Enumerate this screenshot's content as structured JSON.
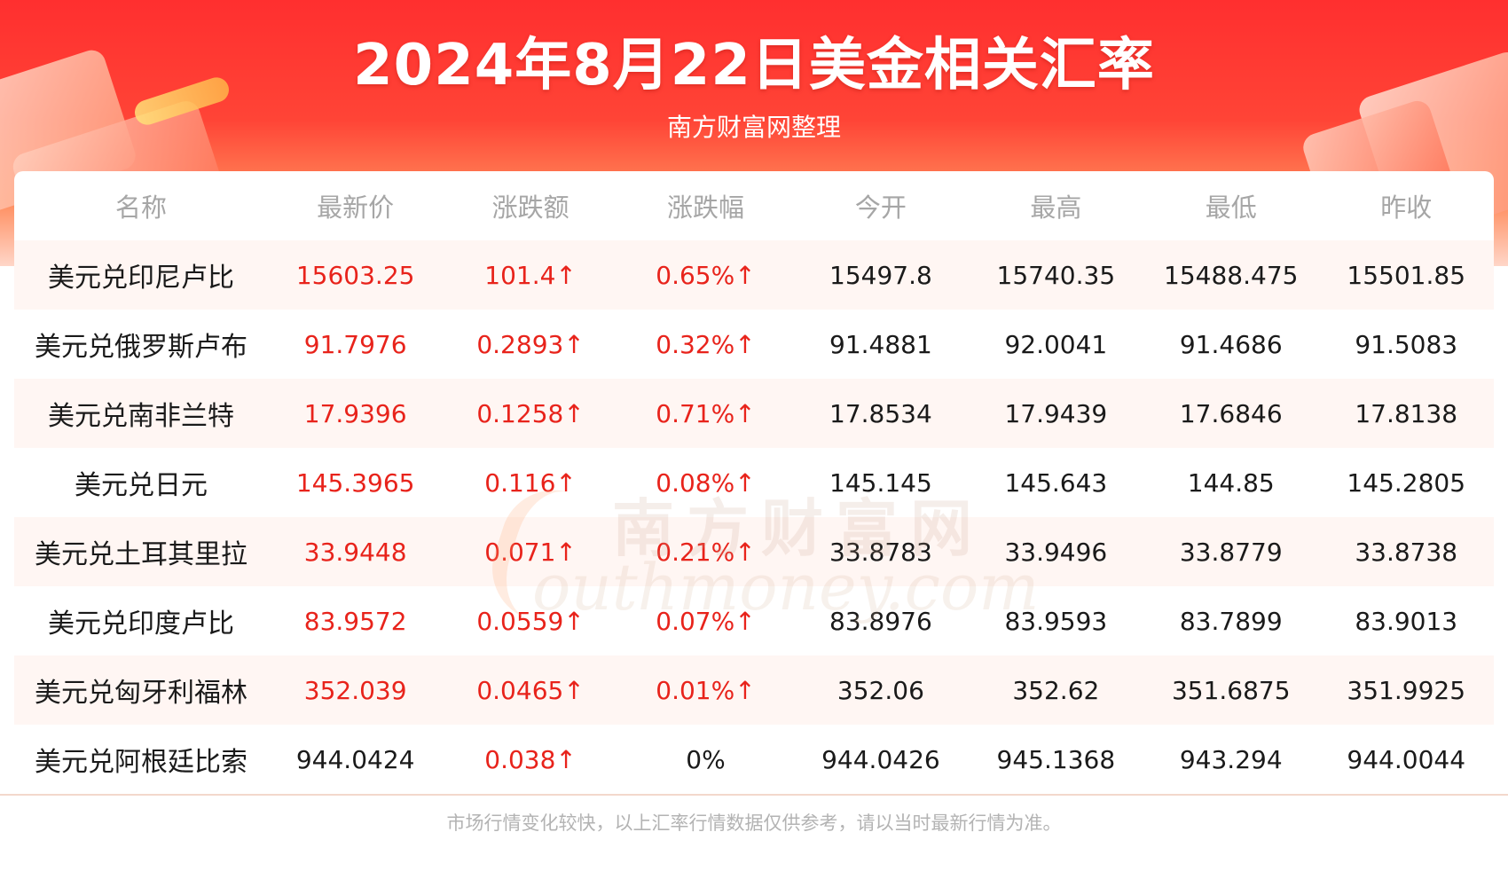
{
  "header": {
    "title": "2024年8月22日美金相关汇率",
    "subtitle": "南方财富网整理"
  },
  "colors": {
    "banner_red": "#ff2f2f",
    "up_red": "#e8231b",
    "row_tint": "#fff6f3",
    "header_gray": "#a6a6a6"
  },
  "table": {
    "columns": [
      "名称",
      "最新价",
      "涨跌额",
      "涨跌幅",
      "今开",
      "最高",
      "最低",
      "昨收"
    ],
    "rows": [
      [
        "美元兑印尼卢比",
        "15603.25",
        "101.4↑",
        "0.65%↑",
        "15497.8",
        "15740.35",
        "15488.475",
        "15501.85"
      ],
      [
        "美元兑俄罗斯卢布",
        "91.7976",
        "0.2893↑",
        "0.32%↑",
        "91.4881",
        "92.0041",
        "91.4686",
        "91.5083"
      ],
      [
        "美元兑南非兰特",
        "17.9396",
        "0.1258↑",
        "0.71%↑",
        "17.8534",
        "17.9439",
        "17.6846",
        "17.8138"
      ],
      [
        "美元兑日元",
        "145.3965",
        "0.116↑",
        "0.08%↑",
        "145.145",
        "145.643",
        "144.85",
        "145.2805"
      ],
      [
        "美元兑土耳其里拉",
        "33.9448",
        "0.071↑",
        "0.21%↑",
        "33.8783",
        "33.9496",
        "33.8779",
        "33.8738"
      ],
      [
        "美元兑印度卢比",
        "83.9572",
        "0.0559↑",
        "0.07%↑",
        "83.8976",
        "83.9593",
        "83.7899",
        "83.9013"
      ],
      [
        "美元兑匈牙利福林",
        "352.039",
        "0.0465↑",
        "0.01%↑",
        "352.06",
        "352.62",
        "351.6875",
        "351.9925"
      ],
      [
        "美元兑阿根廷比索",
        "944.0424",
        "0.038↑",
        "0%",
        "944.0426",
        "945.1368",
        "943.294",
        "944.0044"
      ]
    ]
  },
  "watermark": {
    "cn": "南方财富网",
    "en": "outhmoney.com"
  },
  "footer": {
    "note": "市场行情变化较快，以上汇率行情数据仅供参考，请以当时最新行情为准。"
  }
}
